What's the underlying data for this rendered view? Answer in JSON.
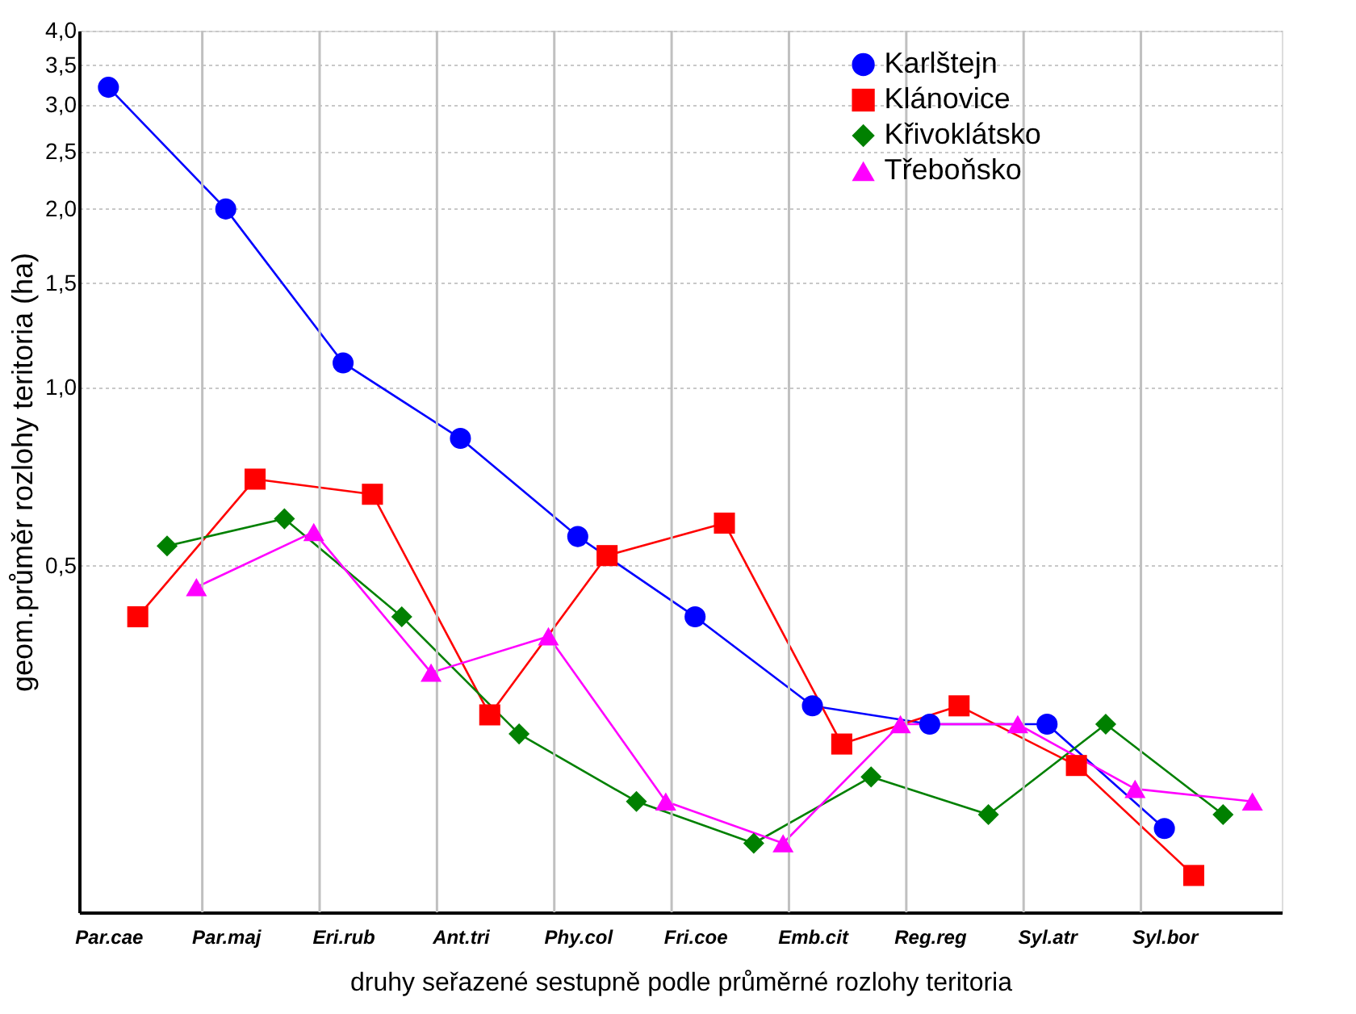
{
  "chart_data": {
    "type": "line",
    "xlabel": "druhy seřazené sestupně podle průměrné rozlohy teritoria",
    "ylabel": "geom.průměr rozlohy teritoria (ha)",
    "log": "y",
    "grid": true,
    "legend": "top right",
    "categories": [
      "Par.cae",
      null,
      null,
      null,
      "Par.maj",
      null,
      null,
      null,
      "Eri.rub",
      null,
      null,
      null,
      "Ant.tri",
      null,
      null,
      null,
      "Phy.col",
      null,
      null,
      null,
      "Fri.coe",
      null,
      null,
      null,
      "Emb.cit",
      null,
      null,
      null,
      "Reg.reg",
      null,
      null,
      null,
      "Syl.atr",
      null,
      null,
      null,
      "Syl.bor",
      null,
      null,
      null
    ],
    "ylim": [
      0.13,
      4.0
    ],
    "yticks": [
      {
        "value": 0.5,
        "label": "0,5"
      },
      {
        "value": 1.0,
        "label": "1,0"
      },
      {
        "value": 1.5,
        "label": "1,5"
      },
      {
        "value": 2.0,
        "label": "2,0"
      },
      {
        "value": 2.5,
        "label": "2,5"
      },
      {
        "value": 3.0,
        "label": "3,0"
      },
      {
        "value": 3.5,
        "label": "3,5"
      },
      {
        "value": 4.0,
        "label": "4,0"
      }
    ],
    "series": [
      {
        "name": "Karlštejn",
        "color": "#0000ff",
        "marker": "circle",
        "values": [
          3.21,
          null,
          null,
          null,
          2.0,
          null,
          null,
          null,
          1.1,
          null,
          null,
          null,
          0.82,
          null,
          null,
          null,
          0.56,
          null,
          null,
          null,
          0.41,
          null,
          null,
          null,
          0.29,
          null,
          null,
          null,
          0.27,
          null,
          null,
          null,
          0.27,
          null,
          null,
          null,
          0.18,
          null,
          null,
          null
        ]
      },
      {
        "name": "Klánovice",
        "color": "#ff0000",
        "marker": "square",
        "values": [
          null,
          0.41,
          null,
          null,
          null,
          0.7,
          null,
          null,
          null,
          0.66,
          null,
          null,
          null,
          0.28,
          null,
          null,
          null,
          0.52,
          null,
          null,
          null,
          0.59,
          null,
          null,
          null,
          0.25,
          null,
          null,
          null,
          0.29,
          null,
          null,
          null,
          0.23,
          null,
          null,
          null,
          0.15,
          null,
          null
        ]
      },
      {
        "name": "Křivoklátsko",
        "color": "#008000",
        "marker": "diamond",
        "values": [
          null,
          null,
          0.54,
          null,
          null,
          null,
          0.6,
          null,
          null,
          null,
          0.41,
          null,
          null,
          null,
          0.26,
          null,
          null,
          null,
          0.2,
          null,
          null,
          null,
          0.17,
          null,
          null,
          null,
          0.22,
          null,
          null,
          null,
          0.19,
          null,
          null,
          null,
          0.27,
          null,
          null,
          null,
          0.19,
          null
        ]
      },
      {
        "name": "Třeboňsko",
        "color": "#ff00ff",
        "marker": "triangle",
        "values": [
          null,
          null,
          null,
          0.46,
          null,
          null,
          null,
          0.57,
          null,
          null,
          null,
          0.33,
          null,
          null,
          null,
          0.38,
          null,
          null,
          null,
          0.2,
          null,
          null,
          null,
          0.17,
          null,
          null,
          null,
          0.27,
          null,
          null,
          null,
          0.27,
          null,
          null,
          null,
          0.21,
          null,
          null,
          null,
          0.2
        ]
      }
    ]
  }
}
